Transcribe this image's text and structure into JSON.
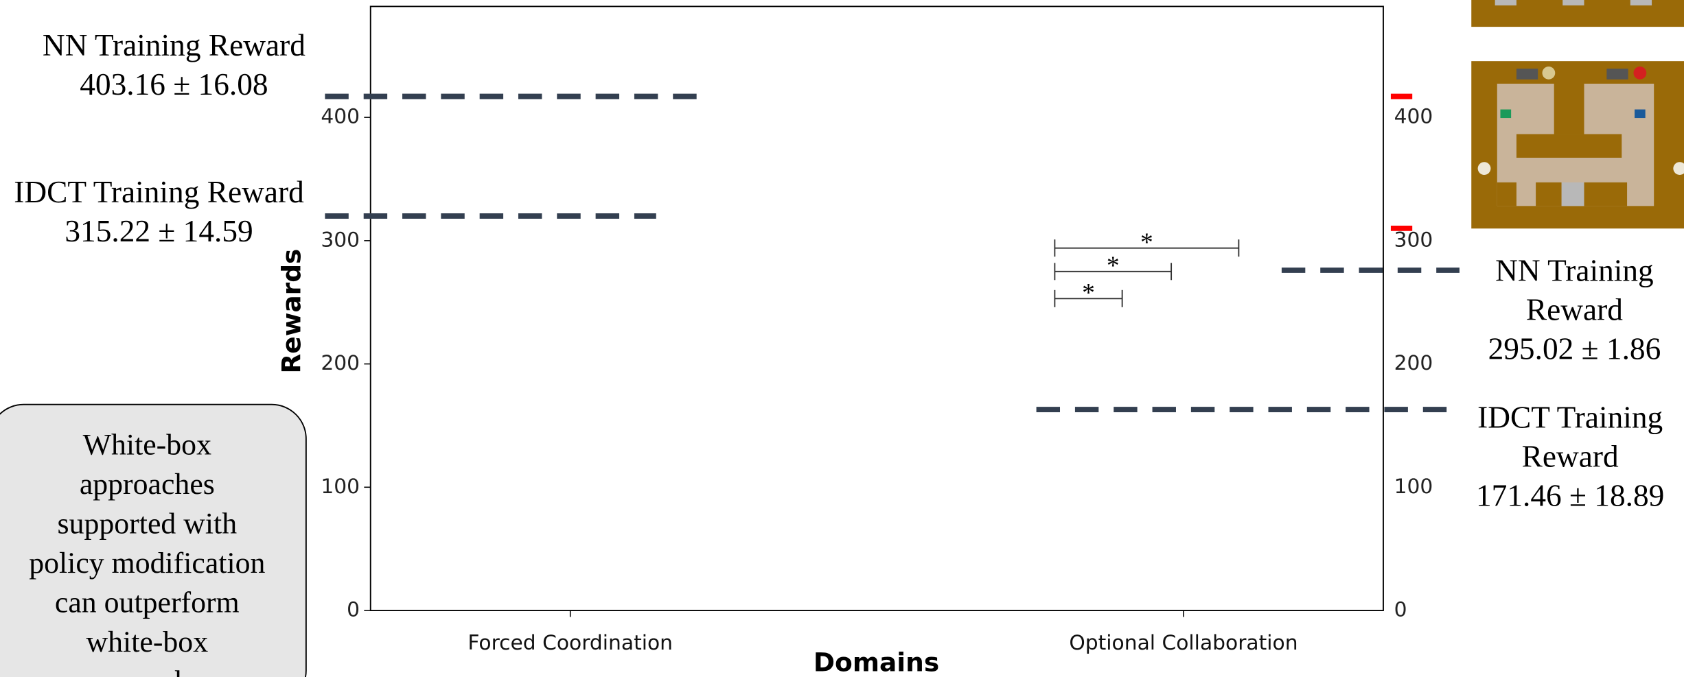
{
  "chart_data": {
    "type": "bar",
    "xlabel": "Domains",
    "ylabel": "Rewards",
    "categories": [
      "Forced Coordination",
      "Optional Collaboration"
    ],
    "ylim": [
      0,
      490
    ],
    "yticks": [
      0,
      100,
      200,
      300,
      400
    ],
    "y2lim": [
      0,
      490
    ],
    "y2ticks": [
      0,
      100,
      200,
      300,
      400
    ],
    "reference_lines": [
      {
        "value": 417,
        "x": [
          -0.4,
          0.22
        ],
        "color": "#333f50",
        "label": [
          "NN Training Reward",
          "403.16 ± 16.08"
        ]
      },
      {
        "value": 320,
        "x": [
          -0.4,
          0.14
        ],
        "color": "#333f50",
        "label": [
          "IDCT Training Reward",
          "315.22 ± 14.59"
        ]
      },
      {
        "value": 276,
        "x": [
          1.16,
          1.45
        ],
        "color": "#333f50",
        "label": [
          "NN Training",
          "Reward",
          "295.02 ± 1.86"
        ]
      },
      {
        "value": 163,
        "x": [
          0.76,
          1.43
        ],
        "color": "#333f50",
        "label": [
          "IDCT Training",
          "Reward",
          "171.46 ± 18.89"
        ]
      }
    ],
    "significance": [
      {
        "y": 294,
        "x": [
          0.79,
          1.09
        ],
        "label": "*"
      },
      {
        "y": 275,
        "x": [
          0.79,
          0.98
        ],
        "label": "*"
      },
      {
        "y": 253,
        "x": [
          0.79,
          0.9
        ],
        "label": "*"
      }
    ],
    "axis_markers": [
      {
        "value": 417,
        "color": "#ff0000"
      },
      {
        "value": 310,
        "color": "#ff0000"
      }
    ]
  },
  "note_box": {
    "lines": [
      "White-box",
      "approaches",
      "supported with",
      "policy modification",
      "can outperform",
      "white-box",
      "approaches"
    ]
  }
}
